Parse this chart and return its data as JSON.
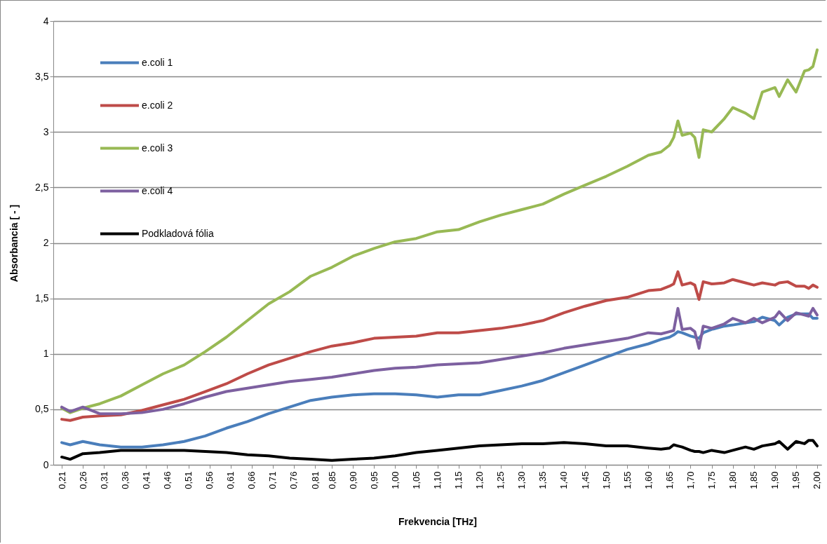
{
  "chart_data": {
    "type": "line",
    "xlabel": "Frekvencia [THz]",
    "ylabel": "Absorbancia [ - ]",
    "x": [
      0.21,
      0.23,
      0.26,
      0.3,
      0.35,
      0.4,
      0.45,
      0.5,
      0.55,
      0.6,
      0.65,
      0.7,
      0.75,
      0.8,
      0.85,
      0.9,
      0.95,
      1.0,
      1.05,
      1.1,
      1.15,
      1.2,
      1.25,
      1.3,
      1.35,
      1.4,
      1.45,
      1.5,
      1.55,
      1.6,
      1.63,
      1.65,
      1.66,
      1.67,
      1.68,
      1.7,
      1.71,
      1.72,
      1.73,
      1.75,
      1.78,
      1.8,
      1.83,
      1.85,
      1.87,
      1.9,
      1.91,
      1.93,
      1.95,
      1.97,
      1.98,
      1.99,
      2.0
    ],
    "series": [
      {
        "name": "e.coli 1",
        "color": "#4a7ebb",
        "values": [
          0.2,
          0.18,
          0.21,
          0.18,
          0.16,
          0.16,
          0.18,
          0.21,
          0.26,
          0.33,
          0.39,
          0.46,
          0.52,
          0.58,
          0.61,
          0.63,
          0.64,
          0.64,
          0.63,
          0.61,
          0.63,
          0.63,
          0.67,
          0.71,
          0.76,
          0.83,
          0.9,
          0.97,
          1.04,
          1.09,
          1.13,
          1.15,
          1.17,
          1.2,
          1.19,
          1.16,
          1.15,
          1.14,
          1.19,
          1.22,
          1.25,
          1.26,
          1.28,
          1.29,
          1.33,
          1.3,
          1.26,
          1.33,
          1.36,
          1.36,
          1.36,
          1.32,
          1.32
        ]
      },
      {
        "name": "e.coli 2",
        "color": "#be4b48",
        "values": [
          0.41,
          0.4,
          0.43,
          0.44,
          0.45,
          0.49,
          0.54,
          0.59,
          0.66,
          0.73,
          0.82,
          0.9,
          0.96,
          1.02,
          1.07,
          1.1,
          1.14,
          1.15,
          1.16,
          1.19,
          1.19,
          1.21,
          1.23,
          1.26,
          1.3,
          1.37,
          1.43,
          1.48,
          1.51,
          1.57,
          1.58,
          1.61,
          1.63,
          1.74,
          1.62,
          1.64,
          1.62,
          1.49,
          1.65,
          1.63,
          1.64,
          1.67,
          1.64,
          1.62,
          1.64,
          1.62,
          1.64,
          1.65,
          1.61,
          1.61,
          1.59,
          1.62,
          1.6
        ]
      },
      {
        "name": "e.coli 3",
        "color": "#98b954",
        "values": [
          0.51,
          0.47,
          0.51,
          0.55,
          0.62,
          0.72,
          0.82,
          0.9,
          1.02,
          1.15,
          1.3,
          1.45,
          1.56,
          1.7,
          1.78,
          1.88,
          1.95,
          2.01,
          2.04,
          2.1,
          2.12,
          2.19,
          2.25,
          2.3,
          2.35,
          2.44,
          2.52,
          2.6,
          2.69,
          2.79,
          2.82,
          2.88,
          2.95,
          3.1,
          2.97,
          2.99,
          2.95,
          2.77,
          3.02,
          3.0,
          3.12,
          3.22,
          3.17,
          3.12,
          3.36,
          3.4,
          3.32,
          3.47,
          3.36,
          3.55,
          3.56,
          3.59,
          3.74
        ]
      },
      {
        "name": "e.coli 4",
        "color": "#7d60a0",
        "values": [
          0.52,
          0.48,
          0.52,
          0.46,
          0.46,
          0.47,
          0.5,
          0.55,
          0.61,
          0.66,
          0.69,
          0.72,
          0.75,
          0.77,
          0.79,
          0.82,
          0.85,
          0.87,
          0.88,
          0.9,
          0.91,
          0.92,
          0.95,
          0.98,
          1.01,
          1.05,
          1.08,
          1.11,
          1.14,
          1.19,
          1.18,
          1.2,
          1.21,
          1.41,
          1.22,
          1.23,
          1.2,
          1.05,
          1.25,
          1.23,
          1.27,
          1.32,
          1.28,
          1.32,
          1.28,
          1.33,
          1.38,
          1.3,
          1.37,
          1.35,
          1.34,
          1.41,
          1.35
        ]
      },
      {
        "name": "Podkladová fólia",
        "color": "#000000",
        "values": [
          0.07,
          0.05,
          0.1,
          0.11,
          0.13,
          0.13,
          0.13,
          0.13,
          0.12,
          0.11,
          0.09,
          0.08,
          0.06,
          0.05,
          0.04,
          0.05,
          0.06,
          0.08,
          0.11,
          0.13,
          0.15,
          0.17,
          0.18,
          0.19,
          0.19,
          0.2,
          0.19,
          0.17,
          0.17,
          0.15,
          0.14,
          0.15,
          0.18,
          0.17,
          0.16,
          0.13,
          0.12,
          0.12,
          0.11,
          0.13,
          0.11,
          0.13,
          0.16,
          0.14,
          0.17,
          0.19,
          0.21,
          0.14,
          0.21,
          0.19,
          0.22,
          0.22,
          0.17
        ]
      }
    ],
    "xlim": [
      0.19,
      2.01
    ],
    "xticks": [
      {
        "value": 0.21,
        "label": "0,21"
      },
      {
        "value": 0.26,
        "label": "0,26"
      },
      {
        "value": 0.31,
        "label": "0,31"
      },
      {
        "value": 0.36,
        "label": "0,36"
      },
      {
        "value": 0.41,
        "label": "0,41"
      },
      {
        "value": 0.46,
        "label": "0,46"
      },
      {
        "value": 0.51,
        "label": "0,51"
      },
      {
        "value": 0.56,
        "label": "0,56"
      },
      {
        "value": 0.61,
        "label": "0,61"
      },
      {
        "value": 0.66,
        "label": "0,66"
      },
      {
        "value": 0.71,
        "label": "0,71"
      },
      {
        "value": 0.76,
        "label": "0,76"
      },
      {
        "value": 0.81,
        "label": "0,81"
      },
      {
        "value": 0.85,
        "label": "0,85"
      },
      {
        "value": 0.9,
        "label": "0,90"
      },
      {
        "value": 0.95,
        "label": "0,95"
      },
      {
        "value": 1.0,
        "label": "1,00"
      },
      {
        "value": 1.05,
        "label": "1,05"
      },
      {
        "value": 1.1,
        "label": "1,10"
      },
      {
        "value": 1.15,
        "label": "1,15"
      },
      {
        "value": 1.2,
        "label": "1,20"
      },
      {
        "value": 1.25,
        "label": "1,25"
      },
      {
        "value": 1.3,
        "label": "1,30"
      },
      {
        "value": 1.35,
        "label": "1,35"
      },
      {
        "value": 1.4,
        "label": "1,40"
      },
      {
        "value": 1.45,
        "label": "1,45"
      },
      {
        "value": 1.5,
        "label": "1,50"
      },
      {
        "value": 1.55,
        "label": "1,55"
      },
      {
        "value": 1.6,
        "label": "1,60"
      },
      {
        "value": 1.65,
        "label": "1,65"
      },
      {
        "value": 1.7,
        "label": "1,70"
      },
      {
        "value": 1.75,
        "label": "1,75"
      },
      {
        "value": 1.8,
        "label": "1,80"
      },
      {
        "value": 1.85,
        "label": "1,85"
      },
      {
        "value": 1.9,
        "label": "1,90"
      },
      {
        "value": 1.95,
        "label": "1,95"
      },
      {
        "value": 2.0,
        "label": "2,00"
      }
    ],
    "ylim": [
      0,
      4
    ],
    "yticks": [
      0,
      {
        "value": 0.5,
        "label": "0,5"
      },
      1,
      {
        "value": 1.5,
        "label": "1,5"
      },
      2,
      {
        "value": 2.5,
        "label": "2,5"
      },
      3,
      {
        "value": 3.5,
        "label": "3,5"
      },
      4
    ],
    "grid": "y",
    "legend": "top left",
    "line_style": "solid"
  }
}
